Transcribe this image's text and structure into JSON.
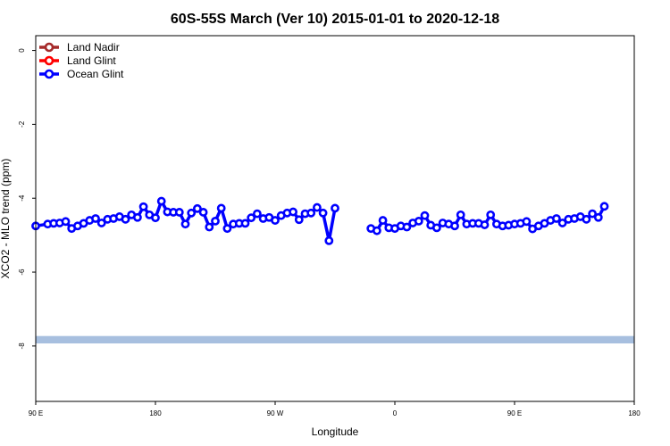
{
  "chart_data": {
    "type": "line",
    "title": "60S-55S March (Ver 10)   2015-01-01 to 2020-12-18",
    "xlabel": "Longitude",
    "ylabel": "XCO2 - MLO trend (ppm)",
    "xlim": [
      0,
      500
    ],
    "ylim": [
      -9.5,
      0.4
    ],
    "x_ticks": [
      {
        "value": 0,
        "label": "90 E"
      },
      {
        "value": 100,
        "label": "180"
      },
      {
        "value": 200,
        "label": "90 W"
      },
      {
        "value": 300,
        "label": "0"
      },
      {
        "value": 400,
        "label": "90 E"
      },
      {
        "value": 500,
        "label": "180"
      }
    ],
    "y_ticks": [
      {
        "value": 0,
        "label": "0"
      },
      {
        "value": -2,
        "label": "-2"
      },
      {
        "value": -4,
        "label": "-4"
      },
      {
        "value": -6,
        "label": "-6"
      },
      {
        "value": -8,
        "label": "-8"
      }
    ],
    "legend_position": "top-left",
    "series": [
      {
        "name": "Land Nadir",
        "color": "#a52a2a",
        "segments": []
      },
      {
        "name": "Land Glint",
        "color": "#ff0000",
        "segments": []
      },
      {
        "name": "Ocean Glint",
        "color": "#0000ff",
        "segments": [
          [
            [
              0,
              -4.75
            ],
            [
              10,
              -4.7
            ],
            [
              15,
              -4.68
            ],
            [
              20,
              -4.67
            ],
            [
              25,
              -4.63
            ],
            [
              30,
              -4.82
            ],
            [
              35,
              -4.75
            ],
            [
              40,
              -4.68
            ],
            [
              45,
              -4.6
            ],
            [
              50,
              -4.55
            ],
            [
              55,
              -4.67
            ],
            [
              60,
              -4.57
            ],
            [
              65,
              -4.55
            ],
            [
              70,
              -4.5
            ],
            [
              75,
              -4.57
            ],
            [
              80,
              -4.45
            ],
            [
              85,
              -4.52
            ],
            [
              90,
              -4.23
            ],
            [
              95,
              -4.45
            ],
            [
              100,
              -4.53
            ],
            [
              105,
              -4.08
            ],
            [
              110,
              -4.37
            ],
            [
              115,
              -4.38
            ],
            [
              120,
              -4.38
            ],
            [
              125,
              -4.7
            ],
            [
              130,
              -4.4
            ],
            [
              135,
              -4.28
            ],
            [
              140,
              -4.38
            ],
            [
              145,
              -4.78
            ],
            [
              150,
              -4.62
            ],
            [
              155,
              -4.27
            ],
            [
              160,
              -4.82
            ],
            [
              165,
              -4.7
            ],
            [
              170,
              -4.68
            ],
            [
              175,
              -4.68
            ],
            [
              180,
              -4.53
            ],
            [
              185,
              -4.42
            ],
            [
              190,
              -4.55
            ],
            [
              195,
              -4.52
            ],
            [
              200,
              -4.6
            ],
            [
              205,
              -4.47
            ],
            [
              210,
              -4.4
            ],
            [
              215,
              -4.37
            ],
            [
              220,
              -4.58
            ],
            [
              225,
              -4.42
            ],
            [
              230,
              -4.4
            ],
            [
              235,
              -4.25
            ],
            [
              240,
              -4.4
            ],
            [
              245,
              -5.15
            ],
            [
              250,
              -4.27
            ]
          ],
          [
            [
              280,
              -4.82
            ],
            [
              285,
              -4.88
            ],
            [
              290,
              -4.6
            ],
            [
              295,
              -4.8
            ],
            [
              300,
              -4.82
            ],
            [
              305,
              -4.75
            ],
            [
              310,
              -4.78
            ],
            [
              315,
              -4.67
            ],
            [
              320,
              -4.62
            ],
            [
              325,
              -4.47
            ],
            [
              330,
              -4.73
            ],
            [
              335,
              -4.8
            ],
            [
              340,
              -4.67
            ],
            [
              345,
              -4.7
            ],
            [
              350,
              -4.75
            ],
            [
              355,
              -4.45
            ],
            [
              360,
              -4.7
            ],
            [
              365,
              -4.68
            ],
            [
              370,
              -4.68
            ],
            [
              375,
              -4.72
            ],
            [
              380,
              -4.45
            ],
            [
              385,
              -4.7
            ],
            [
              390,
              -4.75
            ],
            [
              395,
              -4.73
            ],
            [
              400,
              -4.7
            ],
            [
              405,
              -4.68
            ],
            [
              410,
              -4.63
            ],
            [
              415,
              -4.83
            ],
            [
              420,
              -4.75
            ],
            [
              425,
              -4.68
            ],
            [
              430,
              -4.6
            ],
            [
              435,
              -4.55
            ],
            [
              440,
              -4.67
            ],
            [
              445,
              -4.57
            ],
            [
              450,
              -4.55
            ],
            [
              455,
              -4.5
            ],
            [
              460,
              -4.57
            ],
            [
              465,
              -4.42
            ],
            [
              470,
              -4.52
            ],
            [
              475,
              -4.22
            ]
          ]
        ]
      }
    ],
    "reference_band": {
      "color": "#a7bfdf",
      "y_from": -7.73,
      "y_to": -7.93
    }
  }
}
